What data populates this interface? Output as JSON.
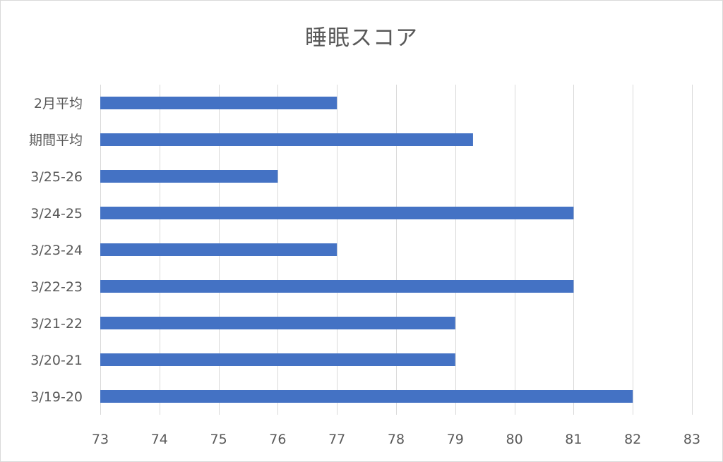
{
  "chart_data": {
    "type": "bar",
    "orientation": "horizontal",
    "title": "睡眠スコア",
    "categories": [
      "3/19-20",
      "3/20-21",
      "3/21-22",
      "3/22-23",
      "3/23-24",
      "3/24-25",
      "3/25-26",
      "期間平均",
      "2月平均"
    ],
    "values": [
      82,
      79,
      79,
      81,
      77,
      81,
      76,
      79.3,
      77
    ],
    "xlim": [
      73,
      83
    ],
    "xticks": [
      "73",
      "74",
      "75",
      "76",
      "77",
      "78",
      "79",
      "80",
      "81",
      "82",
      "83"
    ],
    "xlabel": "",
    "ylabel": "",
    "grid": true,
    "legend": "none",
    "bar_color": "#4472c4",
    "grid_color": "#d9d9d9"
  }
}
